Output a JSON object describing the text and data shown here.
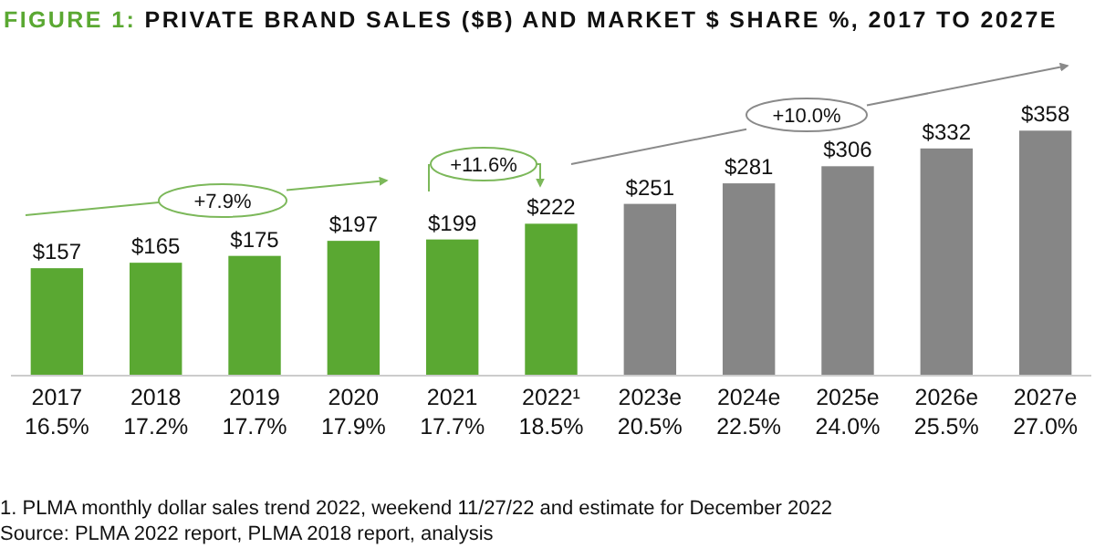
{
  "chart_data": {
    "type": "bar",
    "title": "FIGURE 1: PRIVATE BRAND SALES ($B) AND MARKET $ SHARE %, 2017 TO 2027E",
    "categories": [
      "2017\n16.5%",
      "2018\n17.2%",
      "2019\n17.7%",
      "2020\n17.9%",
      "2021\n17.7%",
      "2022¹\n18.5%",
      "2023e\n20.5%",
      "2024e\n22.5%",
      "2025e\n24.0%",
      "2026e\n25.5%",
      "2027e\n27.0%"
    ],
    "values": [
      157,
      165,
      175,
      197,
      199,
      222,
      251,
      281,
      306,
      332,
      358
    ],
    "colors": [
      "#5aa832",
      "#5aa832",
      "#5aa832",
      "#5aa832",
      "#5aa832",
      "#5aa832",
      "#868686",
      "#868686",
      "#868686",
      "#868686",
      "#868686"
    ],
    "value_labels": [
      "$157",
      "$165",
      "$175",
      "$197",
      "$199",
      "$222",
      "$251",
      "$281",
      "$306",
      "$332",
      "$358"
    ],
    "annotations": [
      "+7.9%",
      "+11.6%",
      "+10.0%",
      "1. PLMA monthly dollar sales trend 2022, weekend 11/27/22 and estimate for December 2022",
      "Source: PLMA 2022 report, PLMA 2018 report, analysis"
    ]
  }
}
